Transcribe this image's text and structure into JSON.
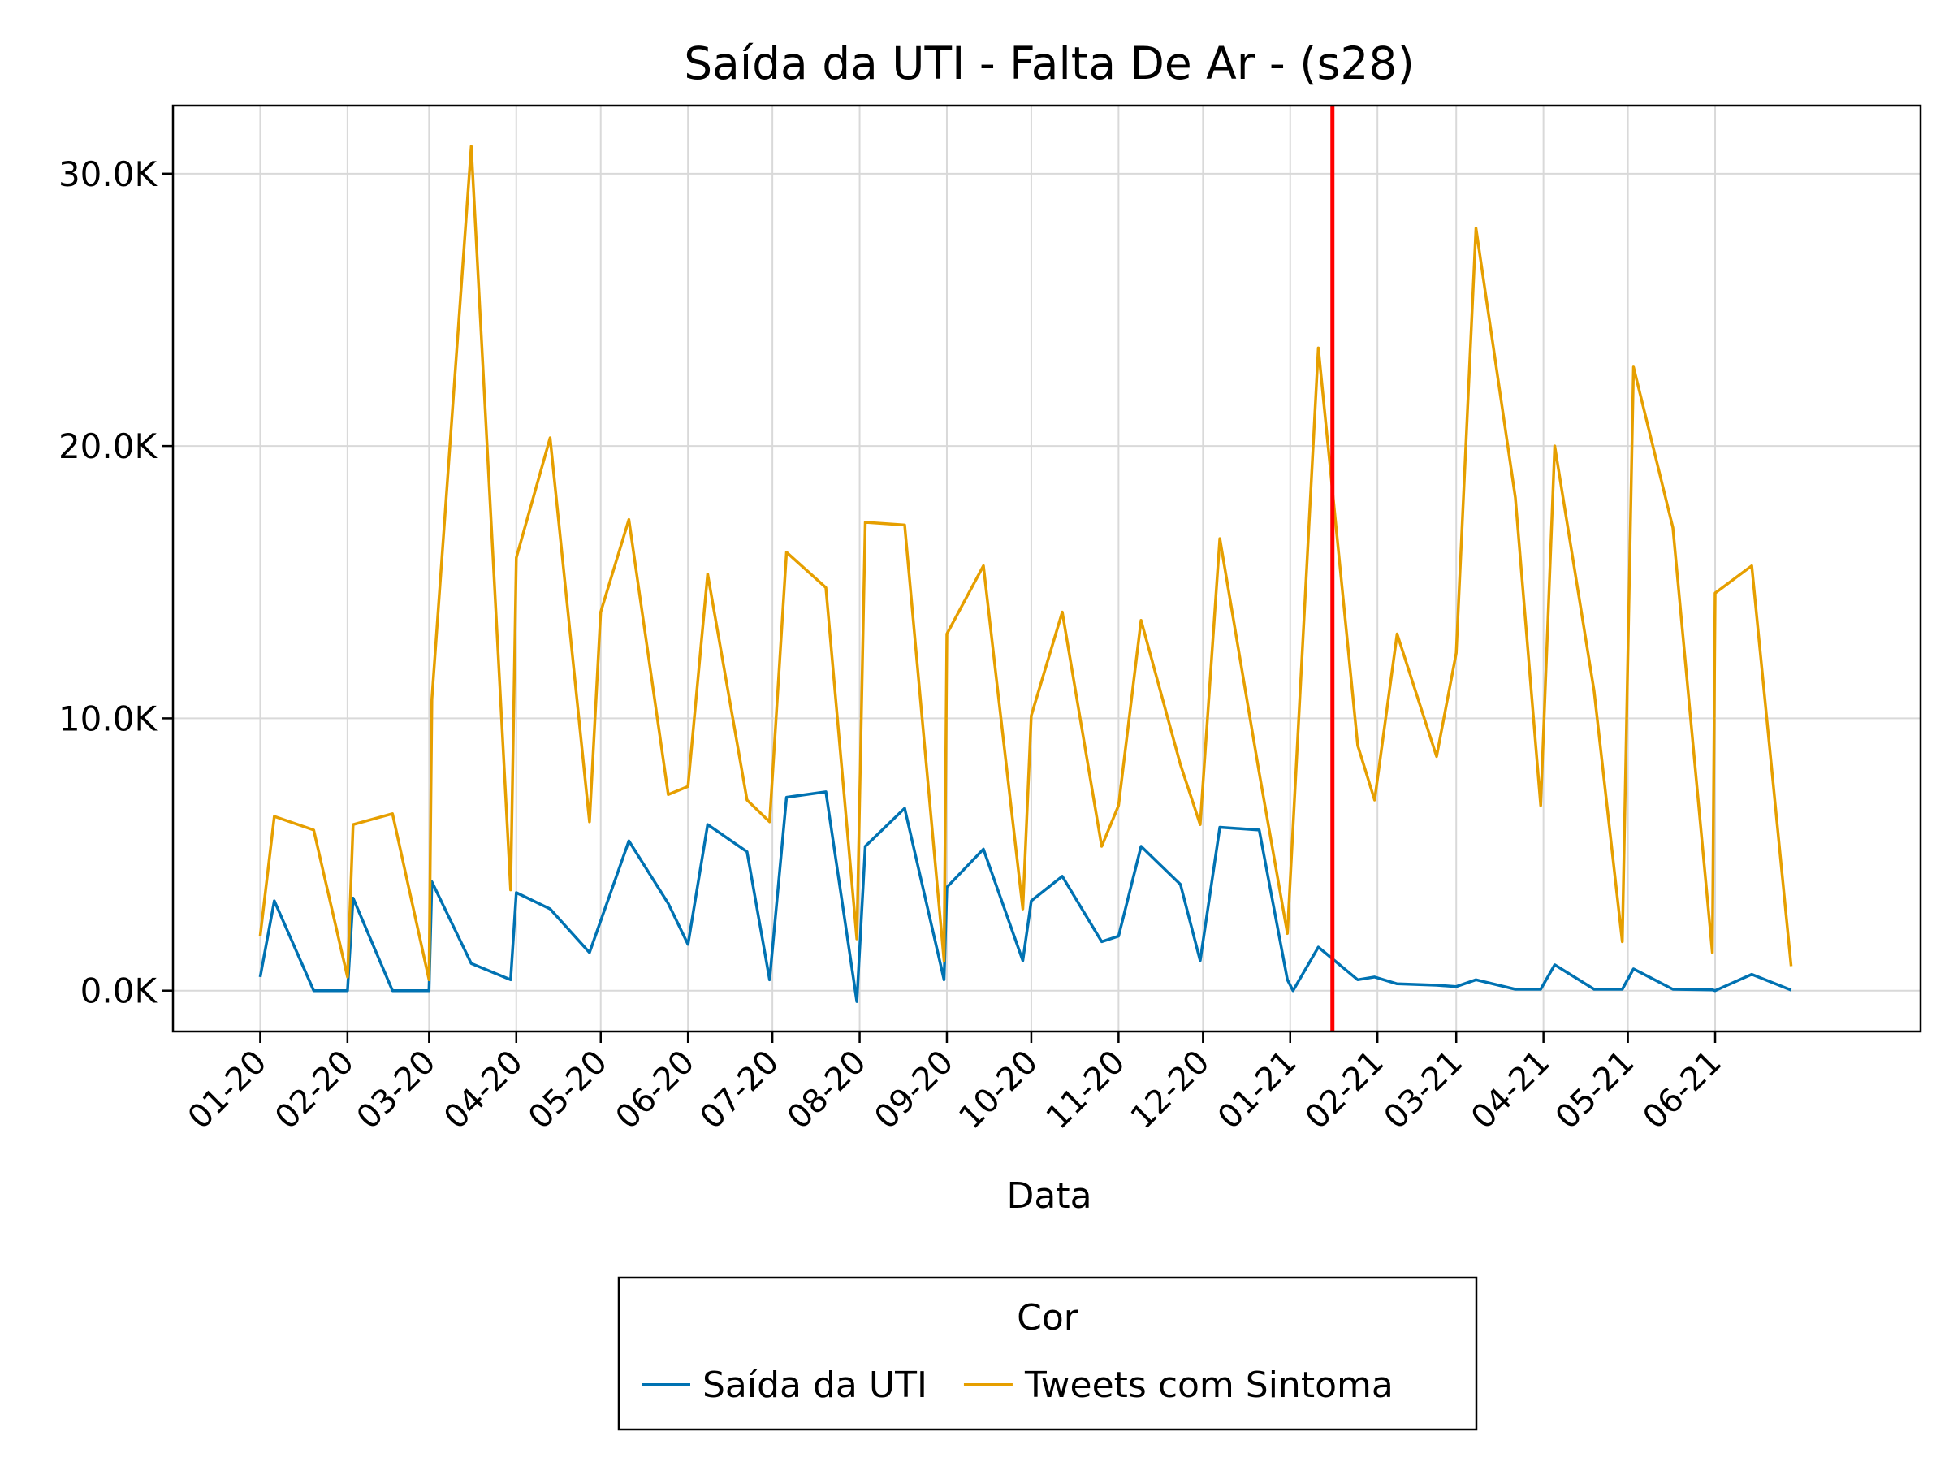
{
  "chart_data": {
    "type": "line",
    "title": "Saída da UTI - Falta De Ar - (s28)",
    "xlabel": "Data",
    "ylabel": "",
    "x_tick_labels": [
      "01-20",
      "02-20",
      "03-20",
      "04-20",
      "05-20",
      "06-20",
      "07-20",
      "08-20",
      "09-20",
      "10-20",
      "11-20",
      "12-20",
      "01-21",
      "02-21",
      "03-21",
      "04-21",
      "05-21",
      "06-21"
    ],
    "y_ticks": [
      0,
      10000,
      20000,
      30000
    ],
    "y_tick_labels": [
      "0.0K",
      "10.0K",
      "20.0K",
      "30.0K"
    ],
    "ylim": [
      -1500,
      32500
    ],
    "xlim": [
      "2019-12-01",
      "2021-08-13"
    ],
    "grid": true,
    "vline": {
      "x": "2021-01-16",
      "color": "#ff0000"
    },
    "legend": {
      "title": "Cor",
      "position": "bottom-center"
    },
    "series": [
      {
        "name": "Saída da UTI",
        "color": "#0072b2",
        "x": [
          "2020-01-01",
          "2020-01-06",
          "2020-01-20",
          "2020-02-01",
          "2020-02-03",
          "2020-02-17",
          "2020-03-01",
          "2020-03-02",
          "2020-03-16",
          "2020-03-30",
          "2020-04-01",
          "2020-04-13",
          "2020-04-27",
          "2020-05-11",
          "2020-05-25",
          "2020-06-01",
          "2020-06-08",
          "2020-06-22",
          "2020-06-30",
          "2020-07-06",
          "2020-07-20",
          "2020-07-31",
          "2020-08-03",
          "2020-08-17",
          "2020-08-31",
          "2020-09-01",
          "2020-09-14",
          "2020-09-28",
          "2020-10-01",
          "2020-10-12",
          "2020-10-26",
          "2020-11-01",
          "2020-11-09",
          "2020-11-23",
          "2020-11-30",
          "2020-12-07",
          "2020-12-21",
          "2020-12-31",
          "2021-01-02",
          "2021-01-11",
          "2021-01-25",
          "2021-01-31",
          "2021-02-08",
          "2021-02-22",
          "2021-03-01",
          "2021-03-08",
          "2021-03-22",
          "2021-03-31",
          "2021-04-05",
          "2021-04-19",
          "2021-04-29",
          "2021-05-03",
          "2021-05-17",
          "2021-05-31",
          "2021-06-01",
          "2021-06-14",
          "2021-06-28"
        ],
        "values": [
          500,
          3300,
          0,
          0,
          3400,
          0,
          0,
          4000,
          1000,
          400,
          3600,
          3000,
          1400,
          5500,
          3200,
          1700,
          6100,
          5100,
          400,
          7100,
          7300,
          -400,
          5300,
          6700,
          400,
          3800,
          5200,
          1100,
          3300,
          4200,
          1800,
          2000,
          5300,
          3900,
          1100,
          6000,
          5900,
          400,
          0,
          1600,
          400,
          500,
          250,
          200,
          150,
          400,
          50,
          50,
          950,
          50,
          50,
          800,
          50,
          30,
          0,
          600,
          20
        ]
      },
      {
        "name": "Tweets com Sintoma",
        "color": "#e69f00",
        "x": [
          "2020-01-01",
          "2020-01-06",
          "2020-01-20",
          "2020-02-01",
          "2020-02-03",
          "2020-02-17",
          "2020-03-01",
          "2020-03-02",
          "2020-03-16",
          "2020-03-30",
          "2020-04-01",
          "2020-04-13",
          "2020-04-27",
          "2020-05-01",
          "2020-05-11",
          "2020-05-25",
          "2020-06-01",
          "2020-06-08",
          "2020-06-22",
          "2020-06-30",
          "2020-07-06",
          "2020-07-20",
          "2020-07-31",
          "2020-08-03",
          "2020-08-17",
          "2020-08-31",
          "2020-09-01",
          "2020-09-14",
          "2020-09-28",
          "2020-10-01",
          "2020-10-12",
          "2020-10-26",
          "2020-11-01",
          "2020-11-09",
          "2020-11-23",
          "2020-11-30",
          "2020-12-07",
          "2020-12-21",
          "2020-12-31",
          "2021-01-11",
          "2021-01-25",
          "2021-01-31",
          "2021-02-08",
          "2021-02-22",
          "2021-03-01",
          "2021-03-08",
          "2021-03-22",
          "2021-03-31",
          "2021-04-05",
          "2021-04-19",
          "2021-04-29",
          "2021-05-03",
          "2021-05-17",
          "2021-05-31",
          "2021-06-01",
          "2021-06-14",
          "2021-06-28"
        ],
        "values": [
          2000,
          6400,
          5900,
          500,
          6100,
          6500,
          400,
          10700,
          31000,
          3700,
          15900,
          20300,
          6200,
          13900,
          17300,
          7200,
          7500,
          15300,
          7000,
          6200,
          16100,
          14800,
          1900,
          17200,
          17100,
          1100,
          13100,
          15600,
          3000,
          10100,
          13900,
          5300,
          6800,
          13600,
          8300,
          6100,
          16600,
          8000,
          2100,
          23600,
          9000,
          7000,
          13100,
          8600,
          12400,
          28000,
          18100,
          6800,
          20000,
          11000,
          1800,
          22900,
          17000,
          1400,
          14600,
          15600,
          900
        ]
      }
    ]
  }
}
